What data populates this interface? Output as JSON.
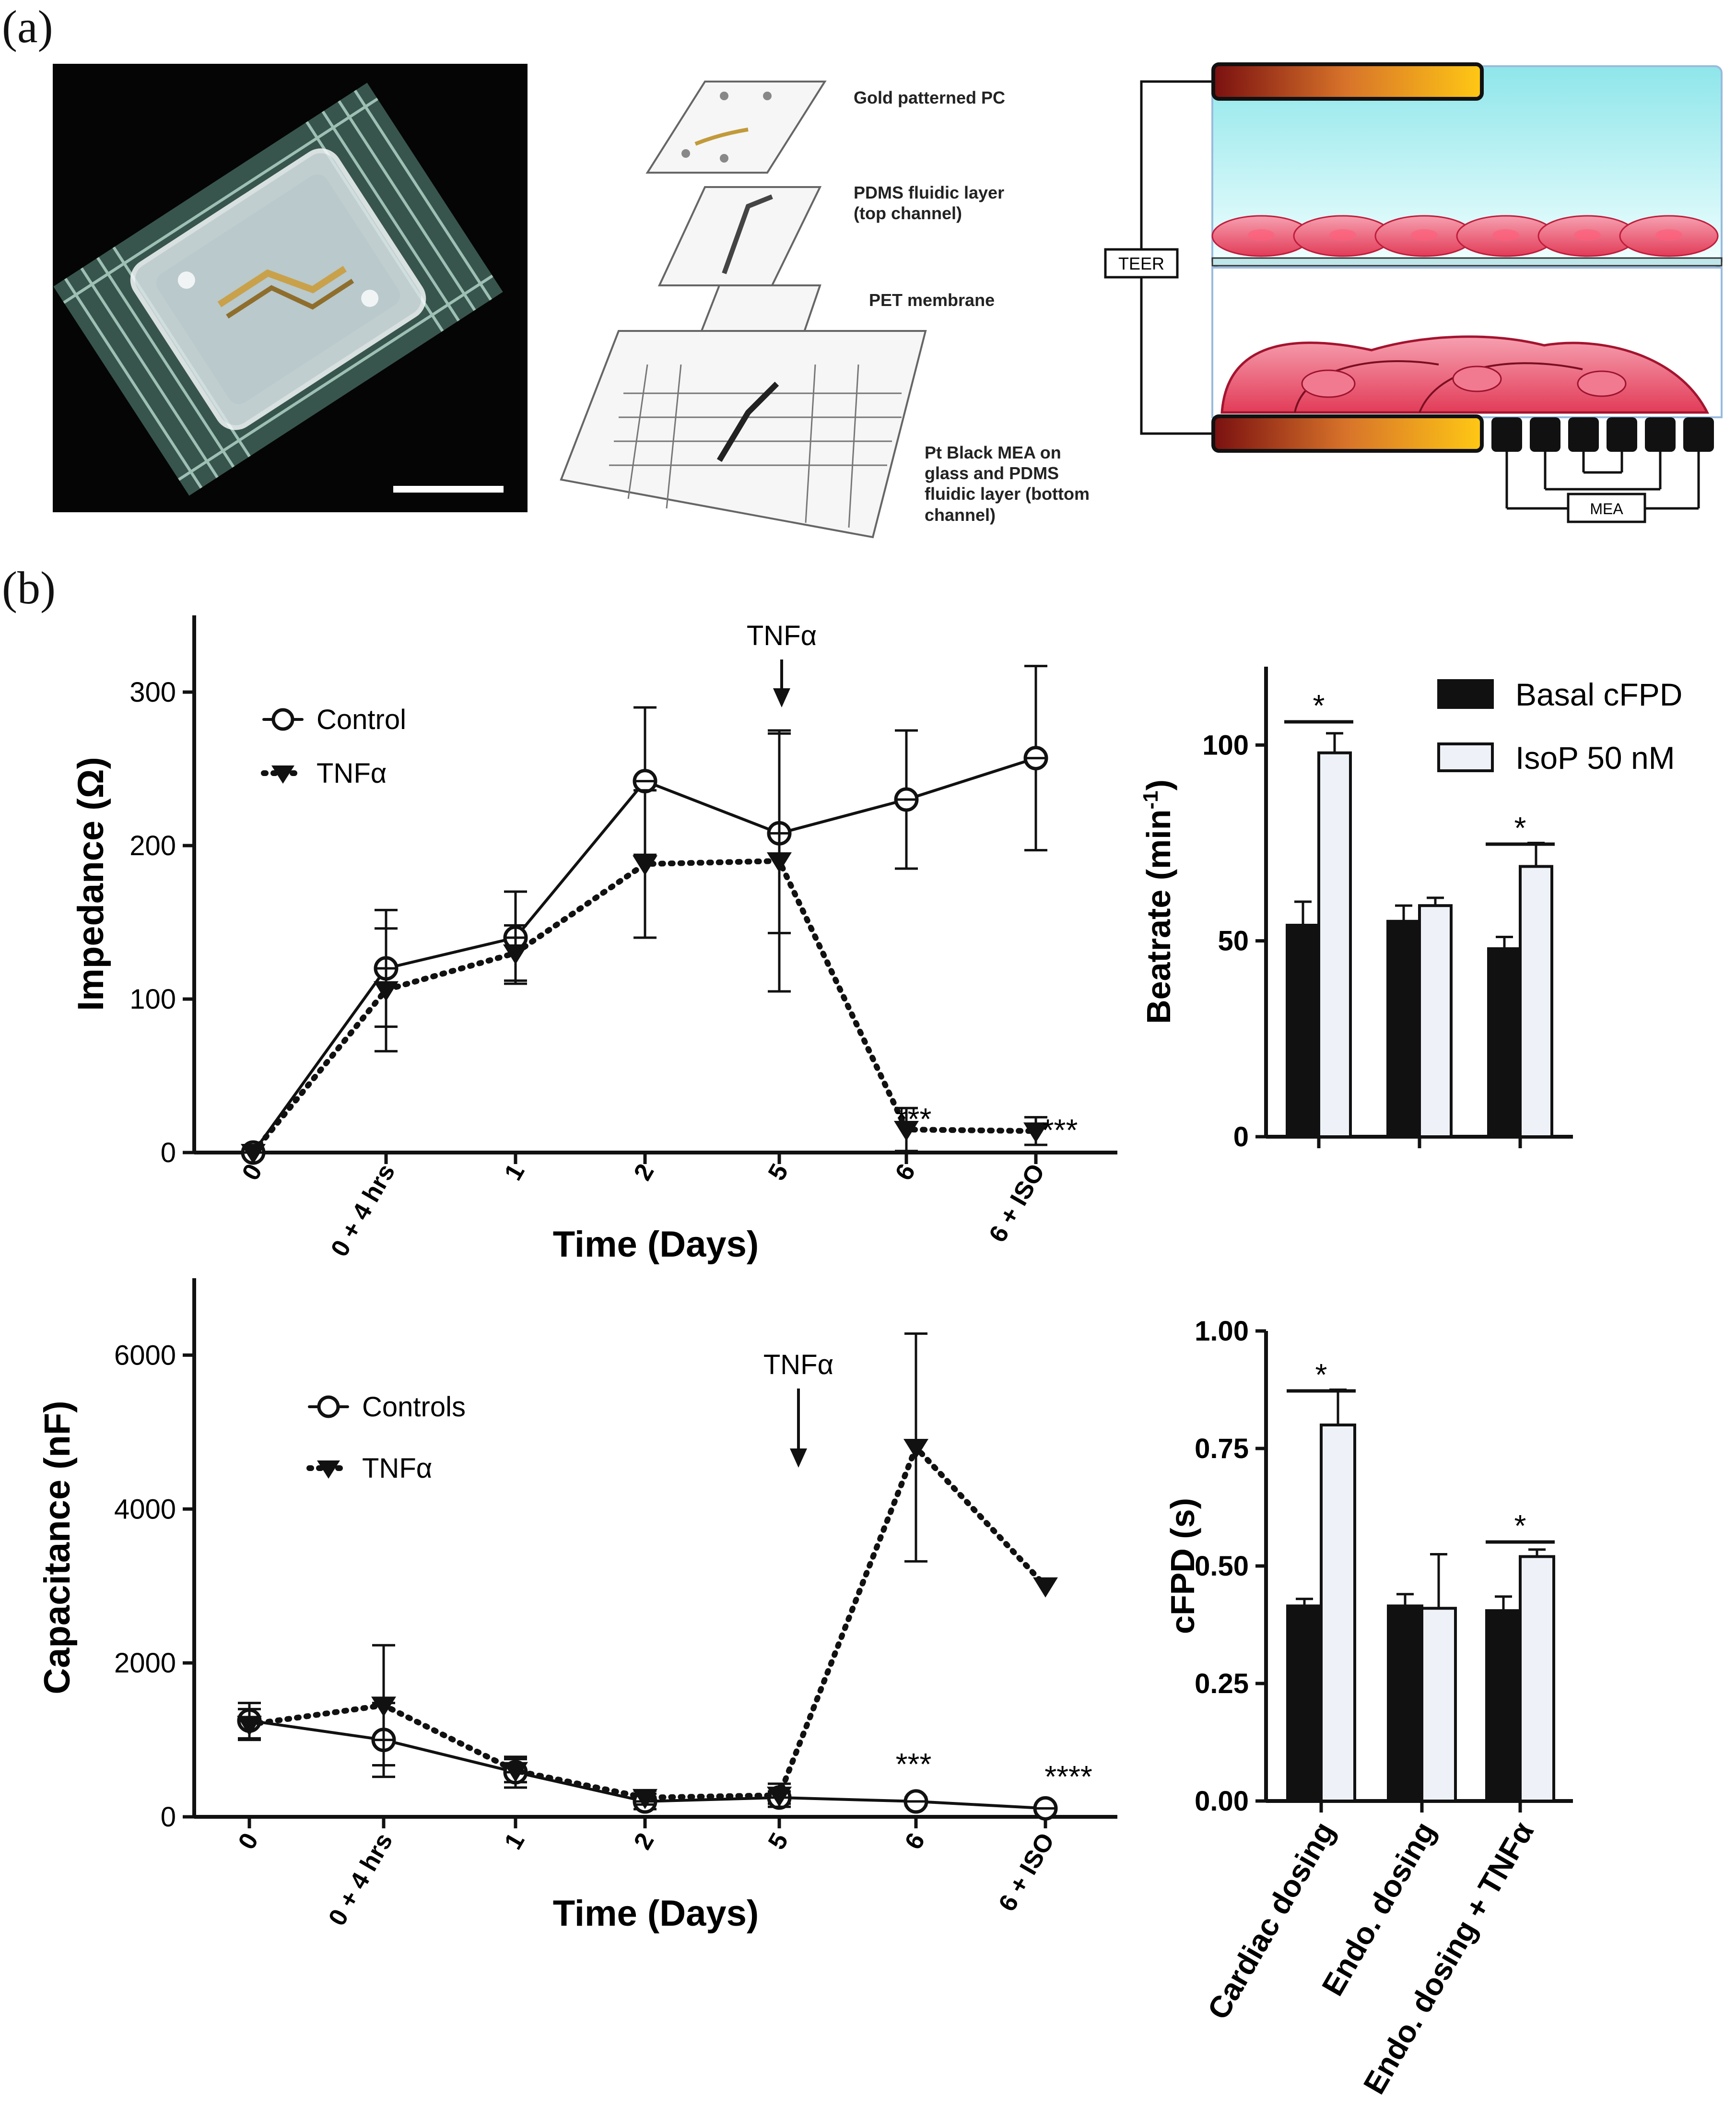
{
  "panel_labels": {
    "a": "(a)",
    "b": "(b)"
  },
  "exploded_view": {
    "layer1": "Gold patterned PC",
    "layer2_line1": "PDMS fluidic layer",
    "layer2_line2": "(top channel)",
    "layer3": "PET membrane",
    "layer4_line1": "Pt Black MEA on",
    "layer4_line2": "glass and PDMS",
    "layer4_line3": "fluidic layer (bottom",
    "layer4_line4": "channel)"
  },
  "schematic": {
    "teer_label": "TEER",
    "mea_label": "MEA"
  },
  "colors": {
    "black_bar": "#111111",
    "white_bar": "#eef2f8",
    "fluid": "#c9f4f6",
    "cells": "#e8506a"
  },
  "chart_data": [
    {
      "id": "impedance",
      "type": "line",
      "title": "",
      "xlabel": "Time (Days)",
      "ylabel": "Impedance (Ω)",
      "categories": [
        "0",
        "0 + 4 hrs",
        "1",
        "2",
        "5",
        "6",
        "6 + ISO"
      ],
      "yticks": [
        "0",
        "100",
        "200",
        "300"
      ],
      "ylim": [
        0,
        350
      ],
      "series": [
        {
          "name": "Control",
          "marker": "circle",
          "line": "solid",
          "values": [
            0,
            120,
            140,
            242,
            208,
            230,
            257
          ],
          "errors": [
            0,
            38,
            30,
            48,
            65,
            45,
            60
          ]
        },
        {
          "name": "TNFα",
          "marker": "triangle-down",
          "line": "dotted",
          "values": [
            0,
            106,
            130,
            188,
            190,
            15,
            14
          ],
          "errors": [
            0,
            40,
            18,
            48,
            85,
            14,
            9
          ]
        }
      ],
      "arrow_label": "TNFα",
      "significance": [
        "***",
        "***"
      ]
    },
    {
      "id": "capacitance",
      "type": "line",
      "title": "",
      "xlabel": "Time (Days)",
      "ylabel": "Capacitance (nF)",
      "categories": [
        "0",
        "0 + 4 hrs",
        "1",
        "2",
        "5",
        "6",
        "6 + ISO"
      ],
      "yticks": [
        "0",
        "2000",
        "4000",
        "6000"
      ],
      "ylim": [
        0,
        7000
      ],
      "series": [
        {
          "name": "Controls",
          "marker": "circle",
          "line": "solid",
          "values": [
            1250,
            1000,
            580,
            200,
            250,
            200,
            110
          ],
          "errors": [
            230,
            480,
            200,
            100,
            80,
            50,
            30
          ]
        },
        {
          "name": "TNFα",
          "marker": "triangle-down",
          "line": "dotted",
          "values": [
            1200,
            1450,
            600,
            250,
            280,
            4800,
            3000
          ],
          "errors": [
            200,
            780,
            150,
            90,
            150,
            1480,
            0
          ]
        }
      ],
      "arrow_label": "TNFα",
      "significance": [
        "***",
        "****"
      ]
    },
    {
      "id": "beatrate",
      "type": "bar",
      "title": "",
      "xlabel": "",
      "ylabel": "Beatrate (min-1)",
      "ylabel_main": "Beatrate (min",
      "ylabel_sup": "-1",
      "ylabel_close": ")",
      "categories": [
        "Cardiac dosing",
        "Endo. dosing",
        "Endo. dosing + TNFα"
      ],
      "yticks": [
        "0",
        "50",
        "100"
      ],
      "ylim": [
        0,
        120
      ],
      "series": [
        {
          "name": "Basal cFPD",
          "values": [
            54,
            55,
            48
          ],
          "errors": [
            6,
            4,
            3
          ]
        },
        {
          "name": "IsoP 50 nM",
          "values": [
            98,
            59,
            69
          ],
          "errors": [
            5,
            2,
            6
          ]
        }
      ],
      "significance": [
        "*",
        "*"
      ]
    },
    {
      "id": "cfpd",
      "type": "bar",
      "title": "",
      "xlabel": "",
      "ylabel": "cFPD (s)",
      "categories": [
        "Cardiac dosing",
        "Endo. dosing",
        "Endo. dosing + TNFα"
      ],
      "yticks": [
        "0.00",
        "0.25",
        "0.50",
        "0.75",
        "1.00"
      ],
      "ylim": [
        0,
        1.0
      ],
      "series": [
        {
          "name": "Basal cFPD",
          "values": [
            0.415,
            0.415,
            0.405
          ],
          "errors": [
            0.015,
            0.025,
            0.03
          ]
        },
        {
          "name": "IsoP 50 nM",
          "values": [
            0.8,
            0.41,
            0.52
          ],
          "errors": [
            0.075,
            0.115,
            0.015
          ]
        }
      ],
      "significance": [
        "*",
        "*"
      ]
    }
  ]
}
